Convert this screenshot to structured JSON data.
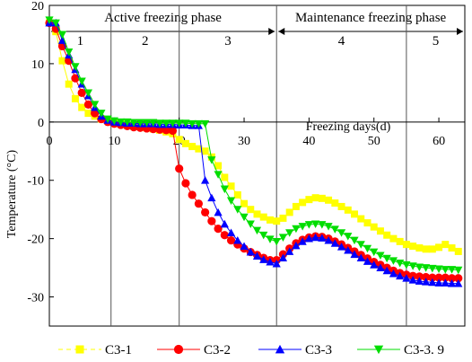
{
  "chart_data": {
    "type": "line",
    "xlabel": "Freezing days(d)",
    "ylabel": "Temperature (°C)",
    "xlim": [
      0,
      64
    ],
    "ylim": [
      -35,
      20
    ],
    "xticks": [
      0,
      10,
      20,
      30,
      40,
      50,
      60
    ],
    "yticks": [
      20,
      10,
      0,
      -10,
      -20,
      -30
    ],
    "grid": false,
    "phase_dividers": [
      9.5,
      20,
      35,
      55
    ],
    "phases": [
      {
        "label": "Active freezing phase",
        "range": [
          0,
          35
        ]
      },
      {
        "label": "Maintenance freezing phase",
        "range": [
          35,
          64
        ]
      }
    ],
    "stages": [
      {
        "label": "1",
        "range": [
          0,
          9.5
        ]
      },
      {
        "label": "2",
        "range": [
          9.5,
          20
        ]
      },
      {
        "label": "3",
        "range": [
          20,
          35
        ]
      },
      {
        "label": "4",
        "range": [
          35,
          55
        ]
      },
      {
        "label": "5",
        "range": [
          55,
          64
        ]
      }
    ],
    "legend_position": "bottom",
    "series": [
      {
        "name": "C3-1",
        "color": "#ffff00",
        "marker": "square",
        "x": [
          0,
          1,
          2,
          3,
          4,
          5,
          6,
          7,
          8,
          9,
          10,
          11,
          12,
          13,
          14,
          15,
          16,
          17,
          18,
          19,
          20,
          21,
          22,
          23,
          24,
          25,
          26,
          27,
          28,
          29,
          30,
          31,
          32,
          33,
          34,
          35,
          36,
          37,
          38,
          39,
          40,
          41,
          42,
          43,
          44,
          45,
          46,
          47,
          48,
          49,
          50,
          51,
          52,
          53,
          54,
          55,
          56,
          57,
          58,
          59,
          60,
          61,
          62,
          63
        ],
        "y": [
          17,
          15.5,
          10.5,
          6.5,
          4,
          2.5,
          1.5,
          1,
          0.5,
          0.2,
          0,
          -0.3,
          -0.5,
          -0.7,
          -0.8,
          -1,
          -1.2,
          -1.4,
          -1.7,
          -2,
          -3,
          -3.7,
          -4.2,
          -4.6,
          -5,
          -6,
          -7.5,
          -9.5,
          -11,
          -12.5,
          -14,
          -15,
          -15.8,
          -16.3,
          -16.8,
          -17,
          -16.5,
          -15.5,
          -14.5,
          -13.8,
          -13.3,
          -13,
          -13.1,
          -13.4,
          -13.9,
          -14.5,
          -15.1,
          -15.8,
          -16.6,
          -17.3,
          -18,
          -18.7,
          -19.4,
          -20,
          -20.5,
          -21,
          -21.3,
          -21.6,
          -21.8,
          -21.8,
          -21.5,
          -21,
          -21.6,
          -22.2
        ]
      },
      {
        "name": "C3-2",
        "color": "#ff0000",
        "marker": "circle",
        "x": [
          0,
          1,
          2,
          3,
          4,
          5,
          6,
          7,
          8,
          9,
          10,
          11,
          12,
          13,
          14,
          15,
          16,
          17,
          18,
          19,
          20,
          21,
          22,
          23,
          24,
          25,
          26,
          27,
          28,
          29,
          30,
          31,
          32,
          33,
          34,
          35,
          36,
          37,
          38,
          39,
          40,
          41,
          42,
          43,
          44,
          45,
          46,
          47,
          48,
          49,
          50,
          51,
          52,
          53,
          54,
          55,
          56,
          57,
          58,
          59,
          60,
          61,
          62,
          63
        ],
        "y": [
          17,
          16,
          13,
          10.5,
          7.5,
          5,
          3,
          1.5,
          0.5,
          0,
          -0.3,
          -0.5,
          -0.7,
          -0.9,
          -1,
          -1.1,
          -1.2,
          -1.3,
          -1.4,
          -1.5,
          -8,
          -10.5,
          -12.5,
          -14,
          -15.5,
          -17,
          -18.3,
          -19.4,
          -20.3,
          -21,
          -21.7,
          -22.3,
          -22.8,
          -23.3,
          -23.7,
          -23.7,
          -22.7,
          -21.7,
          -20.8,
          -20.2,
          -19.8,
          -19.6,
          -19.7,
          -20,
          -20.5,
          -21,
          -21.6,
          -22.2,
          -22.8,
          -23.4,
          -24,
          -24.5,
          -25,
          -25.5,
          -25.9,
          -26.2,
          -26.4,
          -26.5,
          -26.6,
          -26.7,
          -26.7,
          -26.7,
          -26.8,
          -26.8
        ]
      },
      {
        "name": "C3-3",
        "color": "#0000ff",
        "marker": "triangle-up",
        "x": [
          0,
          1,
          2,
          3,
          4,
          5,
          6,
          7,
          8,
          9,
          10,
          11,
          12,
          13,
          14,
          15,
          16,
          17,
          18,
          19,
          20,
          21,
          22,
          23,
          24,
          25,
          26,
          27,
          28,
          29,
          30,
          31,
          32,
          33,
          34,
          35,
          36,
          37,
          38,
          39,
          40,
          41,
          42,
          43,
          44,
          45,
          46,
          47,
          48,
          49,
          50,
          51,
          52,
          53,
          54,
          55,
          56,
          57,
          58,
          59,
          60,
          61,
          62,
          63
        ],
        "y": [
          17,
          17,
          14,
          11.5,
          9,
          6.5,
          4.5,
          2.5,
          1,
          0.3,
          0,
          -0.1,
          -0.2,
          -0.2,
          -0.3,
          -0.3,
          -0.3,
          -0.4,
          -0.4,
          -0.4,
          -0.5,
          -0.5,
          -0.6,
          -0.6,
          -10,
          -13,
          -15.5,
          -17.5,
          -19,
          -20.3,
          -21.3,
          -22.3,
          -23,
          -23.6,
          -24,
          -24.3,
          -23.3,
          -22.2,
          -21.2,
          -20.5,
          -20,
          -19.8,
          -19.9,
          -20.3,
          -20.8,
          -21.4,
          -22,
          -22.7,
          -23.3,
          -23.9,
          -24.5,
          -25,
          -25.5,
          -26,
          -26.4,
          -26.8,
          -27.1,
          -27.3,
          -27.4,
          -27.5,
          -27.6,
          -27.6,
          -27.7,
          -27.7
        ]
      },
      {
        "name": "C3-3. 9",
        "color": "#00dd00",
        "marker": "triangle-down",
        "x": [
          0,
          1,
          2,
          3,
          4,
          5,
          6,
          7,
          8,
          9,
          10,
          11,
          12,
          13,
          14,
          15,
          16,
          17,
          18,
          19,
          20,
          21,
          22,
          23,
          24,
          25,
          26,
          27,
          28,
          29,
          30,
          31,
          32,
          33,
          34,
          35,
          36,
          37,
          38,
          39,
          40,
          41,
          42,
          43,
          44,
          45,
          46,
          47,
          48,
          49,
          50,
          51,
          52,
          53,
          54,
          55,
          56,
          57,
          58,
          59,
          60,
          61,
          62,
          63
        ],
        "y": [
          17.5,
          17,
          15,
          12,
          9.5,
          7,
          5,
          3,
          1.5,
          0.5,
          0.2,
          0,
          0,
          -0.1,
          -0.1,
          -0.1,
          -0.1,
          -0.2,
          -0.2,
          -0.2,
          -0.2,
          -0.2,
          -0.3,
          -0.3,
          -0.3,
          -6.5,
          -9,
          -11.5,
          -13.5,
          -15,
          -16.3,
          -17.5,
          -18.6,
          -19.4,
          -20.1,
          -20.5,
          -19.8,
          -19,
          -18.3,
          -17.9,
          -17.6,
          -17.5,
          -17.6,
          -17.9,
          -18.4,
          -19,
          -19.6,
          -20.3,
          -21,
          -21.7,
          -22.3,
          -22.9,
          -23.4,
          -23.8,
          -24.2,
          -24.5,
          -24.7,
          -24.9,
          -25,
          -25.1,
          -25.2,
          -25.3,
          -25.3,
          -25.4
        ]
      }
    ]
  }
}
